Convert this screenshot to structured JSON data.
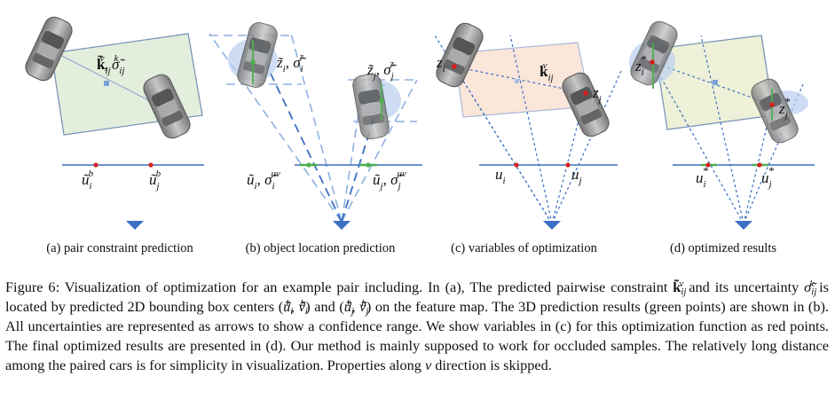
{
  "panels": [
    {
      "caption": "(a) pair constraint prediction"
    },
    {
      "caption": "(b) object location prediction"
    },
    {
      "caption": "(c) variables of optimization"
    },
    {
      "caption": "(d) optimized results"
    }
  ],
  "labels": {
    "a_k": "k̃",
    "a_k_sub": "ij",
    "a_k_sup": "v",
    "a_sigma": ", σ̃",
    "a_sigma_sub": "ij",
    "a_sigma_sup": "k",
    "a_ui": "ũ",
    "a_ui_sub": "i",
    "a_ui_sup": "b",
    "a_uj": "ũ",
    "a_uj_sub": "j",
    "a_uj_sup": "b",
    "b_zi": "z̃",
    "b_zi_sub": "i",
    "b_zi_rest": ", σ̃",
    "b_zi_rest_sub": "i",
    "b_zi_rest_sup": "z",
    "b_zj": "z̃",
    "b_zj_sub": "j",
    "b_zj_rest": ", σ̃",
    "b_zj_rest_sub": "j",
    "b_zj_rest_sup": "z",
    "b_ui": "ũ",
    "b_ui_sub": "i",
    "b_ui_rest": ", σ̃",
    "b_ui_rest_sub": "i",
    "b_ui_rest_sup": "uv",
    "b_uj": "ũ",
    "b_uj_sub": "j",
    "b_uj_rest": ", σ̃",
    "b_uj_rest_sub": "j",
    "b_uj_rest_sup": "uv",
    "c_zi": "z",
    "c_zi_sub": "i",
    "c_zj": "z",
    "c_zj_sub": "j",
    "c_k": "k",
    "c_k_sub": "ij",
    "c_k_sup": "v",
    "c_ui": "u",
    "c_ui_sub": "i",
    "c_uj": "u",
    "c_uj_sub": "j",
    "d_zi": "z",
    "d_zi_sub": "i",
    "d_zi_sup": "*",
    "d_zj": "z",
    "d_zj_sub": "j",
    "d_zj_sup": "*",
    "d_ui": "u",
    "d_ui_sub": "i",
    "d_ui_sup": "*",
    "d_uj": "u",
    "d_uj_sub": "j",
    "d_uj_sup": "*"
  },
  "caption": {
    "p1": "Figure 6: Visualization of optimization for an example pair including. In (a), The predicted pairwise constraint ",
    "m1": "k̃",
    "m1_sub": "ij",
    "m1_sup": "v",
    "p2": " and its uncertainty ",
    "m2": "σ̃",
    "m2_sub": "ij",
    "m2_sup": "k",
    "p3": " is located by predicted 2D bounding box centers (",
    "m3": "ũ",
    "m3_sub": "i",
    "m3_sup": "b",
    "m3_rest": ", ṽ",
    "m3_rest_sub": "i",
    "m3_rest_sup": "b",
    "p4": ") and (",
    "m4": "ũ",
    "m4_sub": "j",
    "m4_sup": "b",
    "m4_rest": ", ṽ",
    "m4_rest_sub": "j",
    "m4_rest_sup": "b",
    "p5": ") on the feature map. The 3D prediction results (green points) are shown in (b). All uncertainties are represented as arrows to show a confidence range. We show variables in (c) for this optimization function as red points. The final optimized results are presented in (d). Our method is mainly supposed to work for occluded samples. The relatively long distance among the paired cars is for simplicity in visualization. Properties along ",
    "m5": "v",
    "p6": " direction is skipped."
  },
  "colors": {
    "line_blue": "#3b6fc4",
    "dash_blue": "#8fb0df",
    "red_point": "#d62020",
    "green_point": "#4caf50",
    "box_green": "#e3eedc",
    "box_pink": "#fbe6da",
    "box_yellow": "#eef1d8",
    "car_gray": "#9a9a9a"
  }
}
